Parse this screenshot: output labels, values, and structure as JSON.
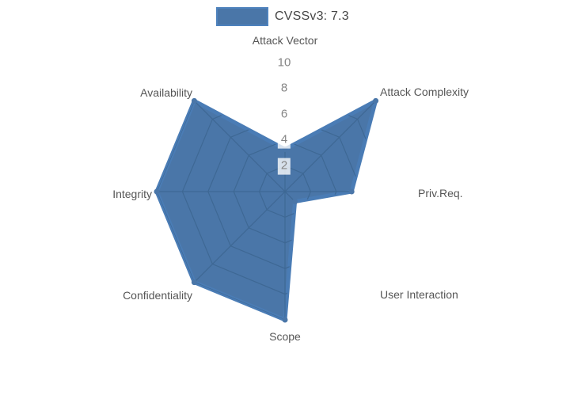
{
  "legend": {
    "label": "CVSSv3: 7.3",
    "swatch_color": "#4a76a8",
    "swatch_border_color": "#4e82bd"
  },
  "chart_data": {
    "type": "radar",
    "title": "",
    "categories": [
      "Attack Vector",
      "Attack Complexity",
      "Priv.Req.",
      "User Interaction",
      "Scope",
      "Confidentiality",
      "Integrity",
      "Availability"
    ],
    "series": [
      {
        "name": "CVSSv3: 7.3",
        "values": [
          3.3,
          10,
          5.2,
          1.1,
          10,
          10,
          10,
          10
        ]
      }
    ],
    "radial_ticks": [
      2,
      4,
      6,
      8,
      10
    ],
    "radial_range": [
      0,
      10
    ],
    "grid_shape": "octagon-spiderweb",
    "gridlines_visible_only_inside_fill": true,
    "fill_color": "#4a76a8",
    "line_color": "#4a7cb5",
    "grid_color": "#3e6894",
    "tick_label_color": "#858585",
    "axis_label_color": "#565656",
    "legend_position": "top-center"
  }
}
